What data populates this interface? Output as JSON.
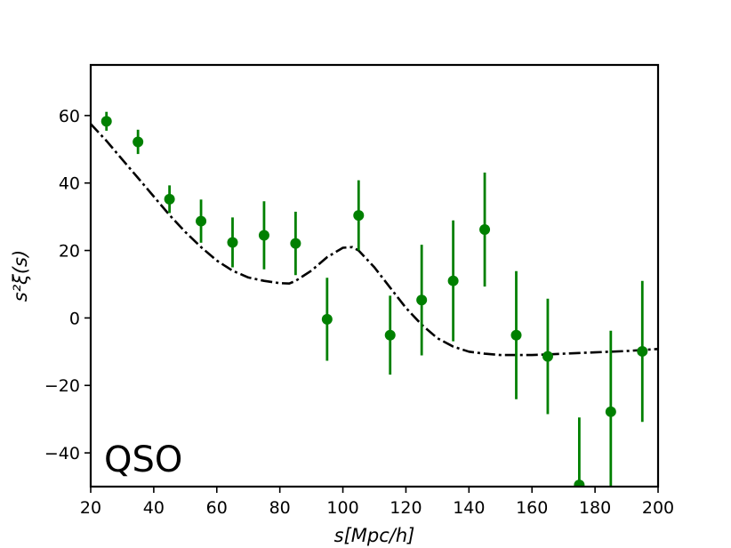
{
  "chart_data": {
    "type": "scatter",
    "title": "",
    "xlabel": "s[Mpc/h]",
    "ylabel": "s²ξ(s)",
    "xlim": [
      20,
      200
    ],
    "ylim": [
      -50,
      75
    ],
    "xticks": [
      20,
      40,
      60,
      80,
      100,
      120,
      140,
      160,
      180,
      200
    ],
    "yticks": [
      -40,
      -20,
      0,
      20,
      40,
      60
    ],
    "xtick_labels": [
      "20",
      "40",
      "60",
      "80",
      "100",
      "120",
      "140",
      "160",
      "180",
      "200"
    ],
    "ytick_labels": [
      "−40",
      "−20",
      "0",
      "20",
      "40",
      "60"
    ],
    "grid": false,
    "annotation": "QSO",
    "series": [
      {
        "kind": "errorbar",
        "color": "#008000",
        "x": [
          25,
          35,
          45,
          55,
          65,
          75,
          85,
          95,
          105,
          115,
          125,
          135,
          145,
          155,
          165,
          175,
          185,
          195
        ],
        "y": [
          58.3,
          52.2,
          35.2,
          28.7,
          22.4,
          24.5,
          22.1,
          -0.4,
          30.4,
          -5.1,
          5.3,
          11.0,
          26.2,
          -5.1,
          -11.4,
          -49.5,
          -27.8,
          -9.9
        ],
        "yerr": [
          2.8,
          3.6,
          4.1,
          6.4,
          7.4,
          10.1,
          9.4,
          12.3,
          10.4,
          11.7,
          16.4,
          17.9,
          16.9,
          19.0,
          17.1,
          20.0,
          24.0,
          20.9
        ]
      },
      {
        "kind": "line",
        "style": "dashdot",
        "color": "#000000",
        "x": [
          20,
          25,
          30,
          35,
          40,
          45,
          50,
          55,
          60,
          65,
          70,
          75,
          80,
          83,
          85,
          90,
          95,
          100,
          103,
          105,
          110,
          115,
          120,
          125,
          130,
          135,
          140,
          145,
          150,
          155,
          160,
          165,
          170,
          175,
          180,
          185,
          190,
          195,
          200
        ],
        "y": [
          57.5,
          52.5,
          47,
          41.5,
          36,
          30.5,
          25.5,
          21,
          17,
          14,
          12,
          11,
          10.3,
          10.2,
          11,
          14,
          18,
          20.8,
          21,
          20,
          15,
          9,
          3,
          -2,
          -6,
          -8.5,
          -10,
          -10.6,
          -11,
          -11,
          -11,
          -10.8,
          -10.6,
          -10.4,
          -10.2,
          -10,
          -9.8,
          -9.5,
          -9.2
        ]
      }
    ]
  }
}
